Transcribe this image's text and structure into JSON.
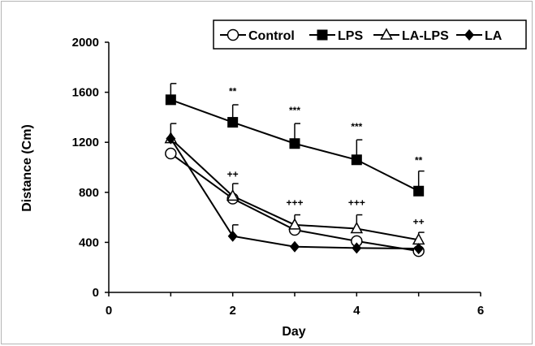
{
  "chart_data": {
    "type": "line",
    "xlabel": "Day",
    "ylabel": "Distance (Cm)",
    "xlim": [
      0,
      6
    ],
    "ylim": [
      0,
      2000
    ],
    "xticks": [
      "0",
      "2",
      "4",
      "6"
    ],
    "yticks": [
      "0",
      "400",
      "800",
      "1200",
      "1600",
      "2000"
    ],
    "legend_position": "top-right",
    "grid": false,
    "x": [
      1,
      2,
      3,
      4,
      5
    ],
    "series": [
      {
        "name": "Control",
        "marker": "open-circle",
        "values": [
          1110,
          750,
          500,
          410,
          330
        ],
        "errors": [
          0,
          0,
          0,
          0,
          0
        ]
      },
      {
        "name": "LPS",
        "marker": "filled-square",
        "values": [
          1540,
          1360,
          1190,
          1060,
          810
        ],
        "errors": [
          130,
          140,
          160,
          160,
          160
        ]
      },
      {
        "name": "LA-LPS",
        "marker": "open-triangle",
        "values": [
          1230,
          770,
          540,
          510,
          420
        ],
        "errors": [
          120,
          100,
          80,
          110,
          60
        ]
      },
      {
        "name": "LA",
        "marker": "filled-diamond",
        "values": [
          1230,
          450,
          365,
          355,
          350
        ],
        "errors": [
          0,
          90,
          0,
          0,
          0
        ]
      }
    ],
    "annotations": [
      {
        "x": 2,
        "y": 1580,
        "text": "**"
      },
      {
        "x": 3,
        "y": 1430,
        "text": "***"
      },
      {
        "x": 4,
        "y": 1300,
        "text": "***"
      },
      {
        "x": 5,
        "y": 1030,
        "text": "**"
      },
      {
        "x": 2,
        "y": 920,
        "text": "++"
      },
      {
        "x": 3,
        "y": 690,
        "text": "+++"
      },
      {
        "x": 4,
        "y": 690,
        "text": "+++"
      },
      {
        "x": 5,
        "y": 540,
        "text": "++"
      }
    ]
  }
}
